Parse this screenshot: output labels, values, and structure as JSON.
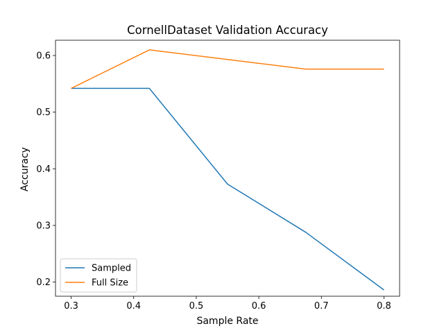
{
  "chart_data": {
    "type": "line",
    "title": "CornellDataset Validation Accuracy",
    "xlabel": "Sample Rate",
    "ylabel": "Accuracy",
    "xlim": [
      0.275,
      0.825
    ],
    "ylim": [
      0.175,
      0.627
    ],
    "xticks": [
      0.3,
      0.4,
      0.5,
      0.6,
      0.7,
      0.8
    ],
    "xtick_labels": [
      "0.3",
      "0.4",
      "0.5",
      "0.6",
      "0.7",
      "0.8"
    ],
    "yticks": [
      0.2,
      0.3,
      0.4,
      0.5,
      0.6
    ],
    "ytick_labels": [
      "0.2",
      "0.3",
      "0.4",
      "0.5",
      "0.6"
    ],
    "grid": false,
    "legend_position": "lower-left",
    "x": [
      0.3,
      0.425,
      0.55,
      0.675,
      0.8
    ],
    "series": [
      {
        "name": "Sampled",
        "color": "#1f77b4",
        "values": [
          0.542,
          0.542,
          0.373,
          0.288,
          0.186
        ]
      },
      {
        "name": "Full Size",
        "color": "#ff7f0e",
        "values": [
          0.542,
          0.61,
          0.593,
          0.576,
          0.576
        ]
      }
    ]
  }
}
